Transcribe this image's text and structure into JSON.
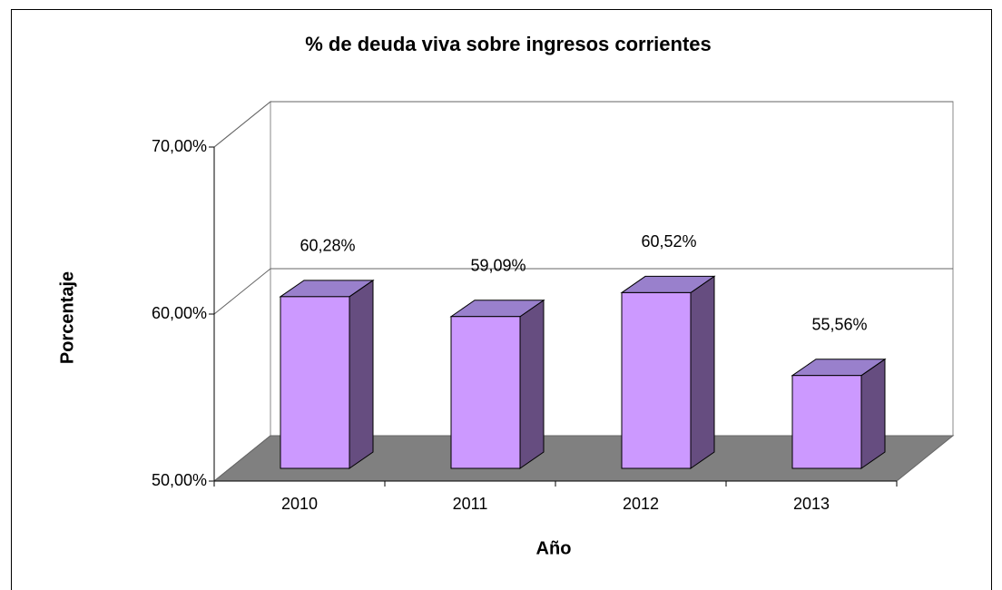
{
  "chart_data": {
    "type": "bar3d",
    "title": "% de deuda viva sobre ingresos corrientes",
    "x_label": "Año",
    "y_label": "Porcentaje",
    "categories": [
      "2010",
      "2011",
      "2012",
      "2013"
    ],
    "values": [
      60.28,
      59.09,
      60.52,
      55.56
    ],
    "value_labels": [
      "60,28%",
      "59,09%",
      "60,52%",
      "55,56%"
    ],
    "color": "#cc99ff",
    "ylim": [
      50,
      70
    ],
    "yticks": [
      {
        "value": 50,
        "label": "50,00%"
      },
      {
        "value": 60,
        "label": "60,00%"
      },
      {
        "value": 70,
        "label": "70,00%"
      }
    ],
    "grid": true
  }
}
